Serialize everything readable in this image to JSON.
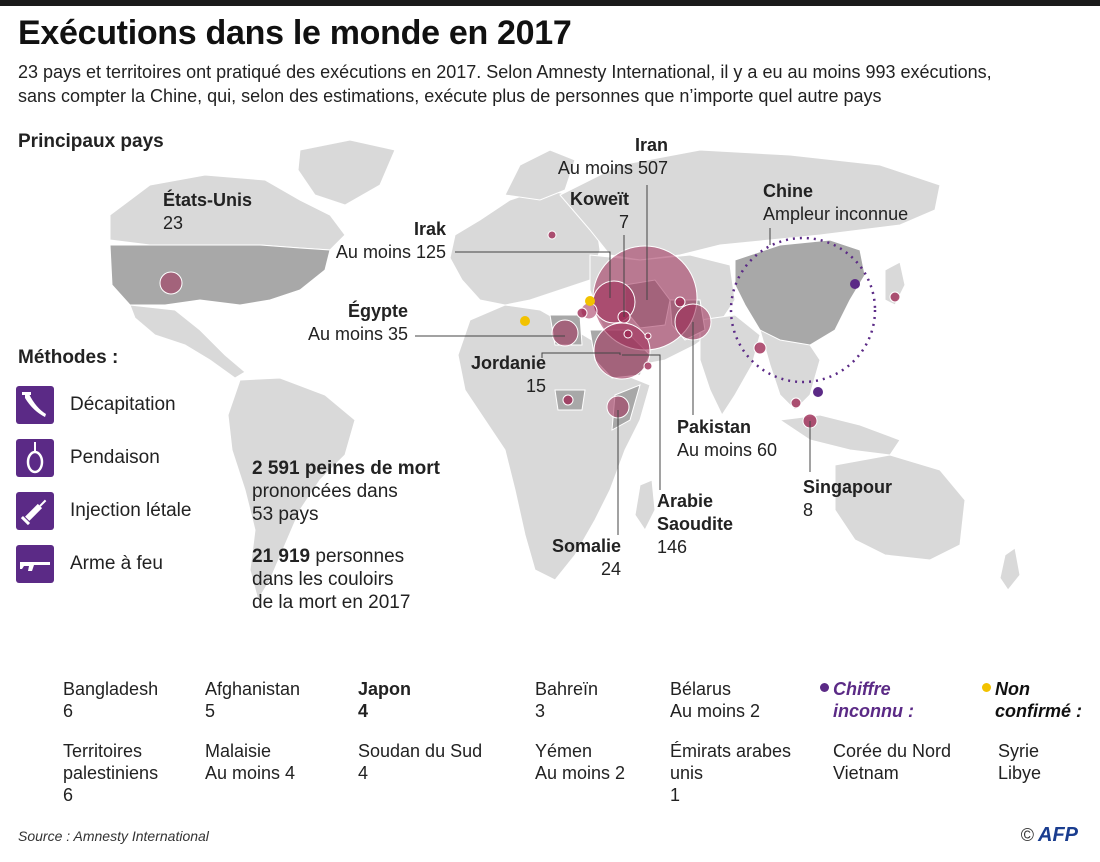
{
  "header": {
    "title": "Exécutions dans le monde en 2017",
    "subtitle_line1": "23 pays et territoires ont pratiqué des exécutions en 2017. Selon Amnesty International, il y a eu au moins 993 exécutions,",
    "subtitle_line2": "sans compter la Chine, qui, selon des estimations, exécute plus de personnes que n’importe quel autre pays"
  },
  "map": {
    "section_title": "Principaux pays",
    "colors": {
      "land": "#d9d9d9",
      "highlight": "#a5a5a5",
      "bubble": "#9e2a55",
      "unknown": "#5b2a86",
      "unconfirmed": "#f2c200"
    },
    "countries": {
      "usa": {
        "name": "États-Unis",
        "value": "23"
      },
      "iran": {
        "name": "Iran",
        "value": "Au moins 507"
      },
      "koweit": {
        "name": "Koweït",
        "value": "7"
      },
      "irak": {
        "name": "Irak",
        "value": "Au moins 125"
      },
      "egypte": {
        "name": "Égypte",
        "value": "Au moins 35"
      },
      "jordanie": {
        "name": "Jordanie",
        "value": "15"
      },
      "chine": {
        "name": "Chine",
        "value": "Ampleur inconnue"
      },
      "pakistan": {
        "name": "Pakistan",
        "value": "Au moins 60"
      },
      "singapour": {
        "name": "Singapour",
        "value": "8"
      },
      "arabie": {
        "name_line1": "Arabie",
        "name_line2": "Saoudite",
        "value": "146"
      },
      "somalie": {
        "name": "Somalie",
        "value": "24"
      }
    }
  },
  "methods": {
    "title": "Méthodes :",
    "items": [
      {
        "label": "Décapitation",
        "icon": "sword-icon"
      },
      {
        "label": "Pendaison",
        "icon": "noose-icon"
      },
      {
        "label": "Injection létale",
        "icon": "syringe-icon"
      },
      {
        "label": "Arme à feu",
        "icon": "rifle-icon"
      }
    ]
  },
  "stats": {
    "sentences_bold": "2 591 peines de mort",
    "sentences_line2": "prononcées dans",
    "sentences_line3": "53 pays",
    "death_row_bold": "21 919",
    "death_row_line1": " personnes",
    "death_row_line2": "dans les couloirs",
    "death_row_line3": "de la mort en 2017"
  },
  "others": {
    "row1": [
      {
        "name": "Bangladesh",
        "value": "6"
      },
      {
        "name": "Afghanistan",
        "value": "5"
      },
      {
        "name": "Japon",
        "value": "4"
      },
      {
        "name": "Bahreïn",
        "value": "3"
      },
      {
        "name": "Bélarus",
        "value": "Au moins 2"
      }
    ],
    "row2": [
      {
        "name": "Territoires",
        "name2": "palestiniens",
        "value": "6"
      },
      {
        "name": "Malaisie",
        "value": "Au moins 4"
      },
      {
        "name": "Soudan du Sud",
        "value": "4"
      },
      {
        "name": "Yémen",
        "value": "Au moins 2"
      },
      {
        "name": "Émirats arabes",
        "name2": "unis",
        "value": "1"
      }
    ],
    "unknown_label_1": "Chiffre",
    "unknown_label_2": "inconnu :",
    "unknown_countries": [
      "Corée du Nord",
      "Vietnam"
    ],
    "unconfirmed_label_1": "Non",
    "unconfirmed_label_2": "confirmé :",
    "unconfirmed_countries": [
      "Syrie",
      "Libye"
    ]
  },
  "footer": {
    "source": "Source : Amnesty International",
    "copyright": "©",
    "logo": "AFP"
  }
}
